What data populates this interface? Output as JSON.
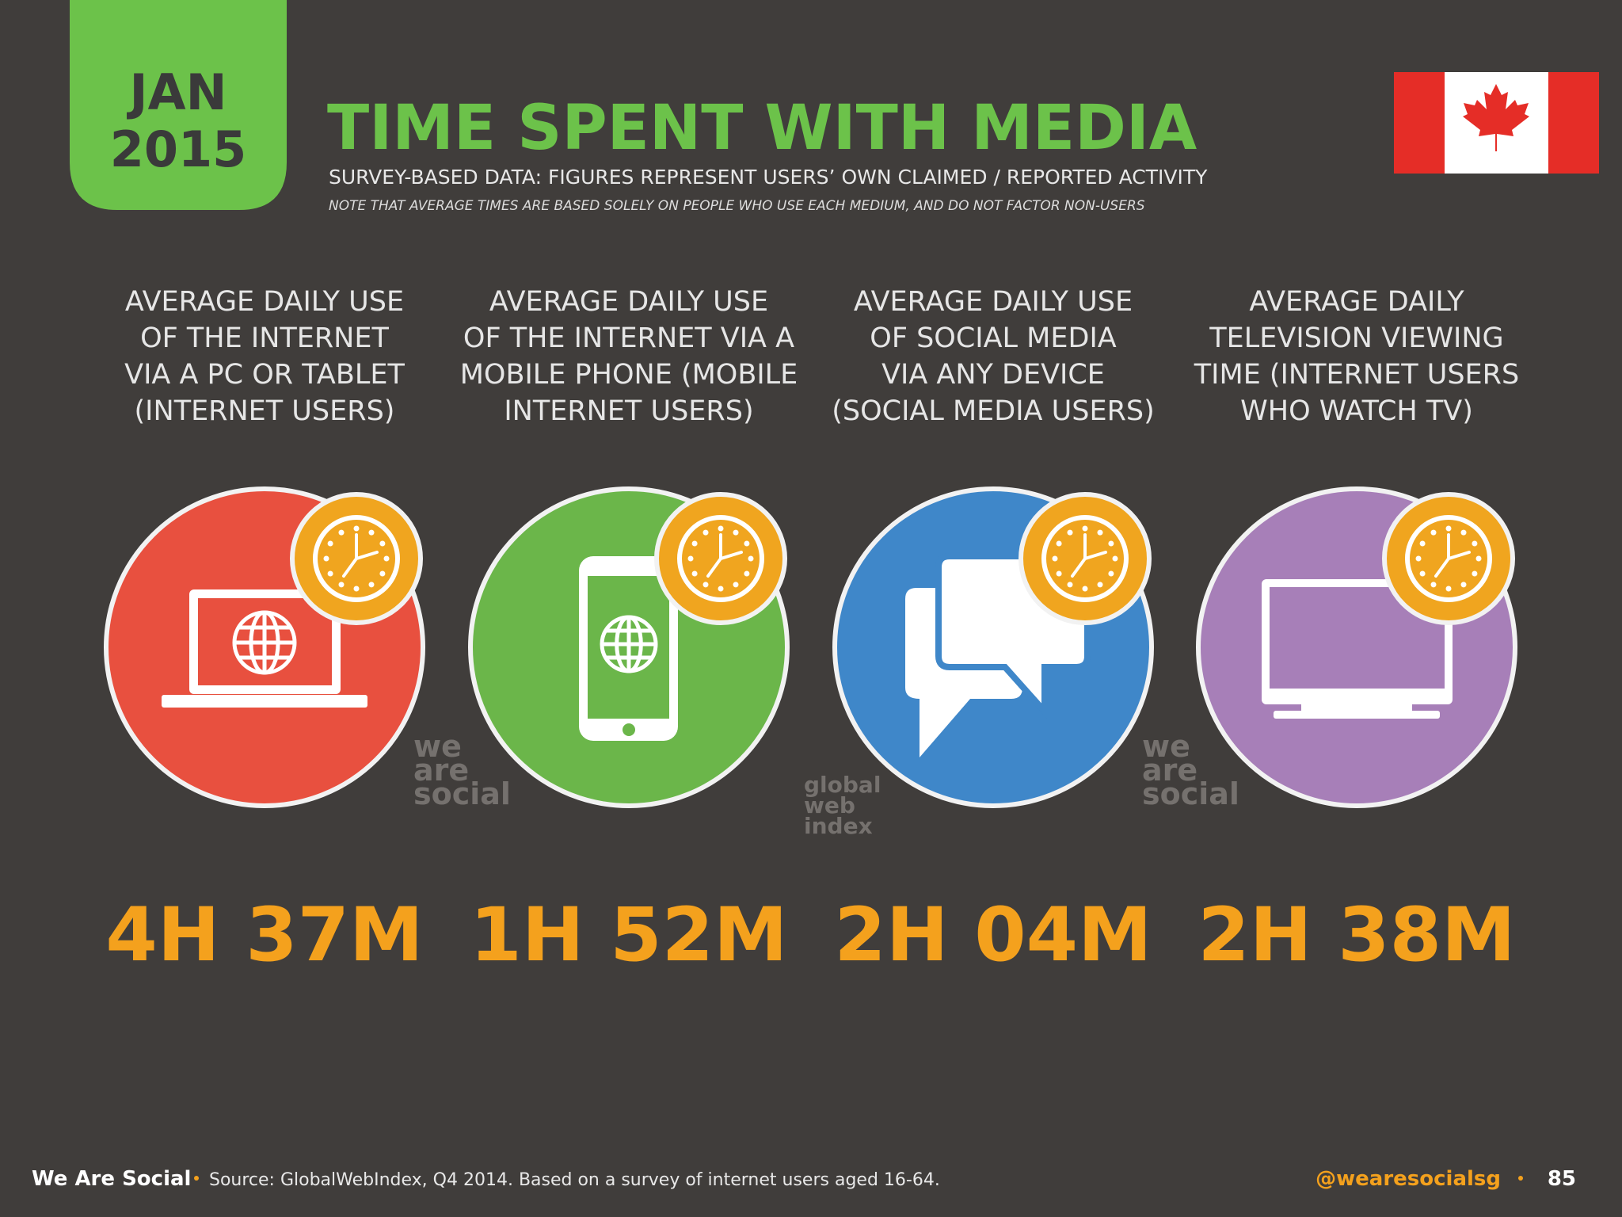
{
  "header": {
    "month": "JAN",
    "year": "2015",
    "title": "TIME SPENT WITH MEDIA",
    "subtitle": "SURVEY-BASED DATA: FIGURES REPRESENT USERS’ OWN CLAIMED / REPORTED ACTIVITY",
    "note": "NOTE THAT AVERAGE TIMES ARE BASED SOLELY ON PEOPLE WHO USE EACH MEDIUM, AND DO NOT FACTOR NON-USERS"
  },
  "cards": [
    {
      "label_lines": [
        "AVERAGE DAILY USE",
        "OF THE INTERNET",
        "VIA A PC OR TABLET",
        "(INTERNET USERS)"
      ],
      "value": "4H 37M"
    },
    {
      "label_lines": [
        "AVERAGE DAILY USE",
        "OF THE INTERNET VIA A",
        "MOBILE PHONE (MOBILE",
        "INTERNET USERS)"
      ],
      "value": "1H 52M"
    },
    {
      "label_lines": [
        "AVERAGE DAILY USE",
        "OF SOCIAL MEDIA",
        "VIA ANY DEVICE",
        "(SOCIAL MEDIA USERS)"
      ],
      "value": "2H 04M"
    },
    {
      "label_lines": [
        "AVERAGE DAILY",
        "TELEVISION VIEWING",
        "TIME (INTERNET USERS",
        "WHO WATCH TV)"
      ],
      "value": "2H 38M"
    }
  ],
  "watermarks": [
    {
      "lines": [
        "we",
        "are",
        "social"
      ]
    },
    {
      "lines": [
        "global",
        "web",
        "index"
      ]
    },
    {
      "lines": [
        "we",
        "are",
        "social"
      ]
    }
  ],
  "footer": {
    "brand": "We Are Social",
    "source": "Source: GlobalWebIndex, Q4 2014. Based on a survey of internet users aged 16-64.",
    "handle": "@wearesocialsg",
    "page": "85"
  }
}
